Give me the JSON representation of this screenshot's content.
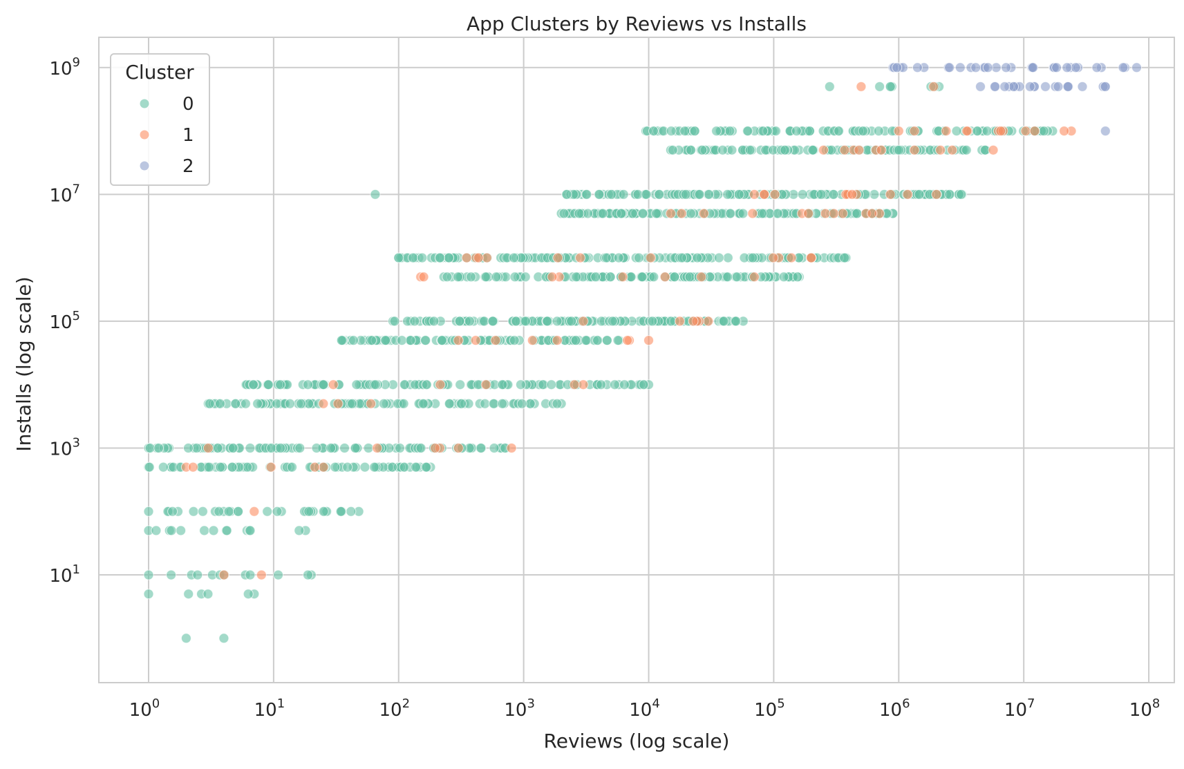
{
  "chart_data": {
    "type": "scatter",
    "title": "App Clusters by Reviews vs Installs",
    "xlabel": "Reviews (log scale)",
    "ylabel": "Installs (log scale)",
    "xscale": "log",
    "yscale": "log",
    "xlim": [
      0.4,
      160000000
    ],
    "ylim": [
      0.2,
      3000000000
    ],
    "grid": true,
    "legend": {
      "title": "Cluster",
      "placement": "top-left"
    },
    "x_tick_labels": [
      {
        "base": "10",
        "exp": "0",
        "value": 1
      },
      {
        "base": "10",
        "exp": "1",
        "value": 10
      },
      {
        "base": "10",
        "exp": "2",
        "value": 100
      },
      {
        "base": "10",
        "exp": "3",
        "value": 1000
      },
      {
        "base": "10",
        "exp": "4",
        "value": 10000
      },
      {
        "base": "10",
        "exp": "5",
        "value": 100000
      },
      {
        "base": "10",
        "exp": "6",
        "value": 1000000
      },
      {
        "base": "10",
        "exp": "7",
        "value": 10000000
      },
      {
        "base": "10",
        "exp": "8",
        "value": 100000000
      }
    ],
    "y_tick_labels": [
      {
        "base": "10",
        "exp": "1",
        "value": 10
      },
      {
        "base": "10",
        "exp": "3",
        "value": 1000
      },
      {
        "base": "10",
        "exp": "5",
        "value": 100000
      },
      {
        "base": "10",
        "exp": "7",
        "value": 10000000
      },
      {
        "base": "10",
        "exp": "9",
        "value": 1000000000
      }
    ],
    "series": [
      {
        "name": "0",
        "color": "#66c2a5",
        "bands": [
          {
            "y": 1,
            "x_min": 2,
            "x_max": 4,
            "n": 2
          },
          {
            "y": 5,
            "x_min": 1,
            "x_max": 7,
            "n": 6
          },
          {
            "y": 10,
            "x_min": 1,
            "x_max": 20,
            "n": 12
          },
          {
            "y": 50,
            "x_min": 1,
            "x_max": 18,
            "n": 14
          },
          {
            "y": 100,
            "x_min": 1,
            "x_max": 48,
            "n": 30
          },
          {
            "y": 500,
            "x_min": 1,
            "x_max": 180,
            "n": 70
          },
          {
            "y": 1000,
            "x_min": 1,
            "x_max": 720,
            "n": 90
          },
          {
            "y": 5000,
            "x_min": 3,
            "x_max": 2000,
            "n": 90
          },
          {
            "y": 10000,
            "x_min": 6,
            "x_max": 10000,
            "n": 110
          },
          {
            "y": 50000,
            "x_min": 35,
            "x_max": 5800,
            "n": 90
          },
          {
            "y": 100000,
            "x_min": 90,
            "x_max": 57000,
            "n": 120
          },
          {
            "y": 500000,
            "x_min": 230,
            "x_max": 160000,
            "n": 130
          },
          {
            "y": 1000000,
            "x_min": 100,
            "x_max": 380000,
            "n": 140
          },
          {
            "y": 5000000,
            "x_min": 2000,
            "x_max": 900000,
            "n": 130
          },
          {
            "y": 10000000,
            "x_min": 2200,
            "x_max": 3200000,
            "n": 140
          },
          {
            "y": 50000000,
            "x_min": 15000,
            "x_max": 5000000,
            "n": 100
          },
          {
            "y": 100000000,
            "x_min": 9500,
            "x_max": 17000000,
            "n": 100
          },
          {
            "y": 500000000,
            "x_min": 280000,
            "x_max": 2100000,
            "n": 8
          }
        ],
        "points": [
          {
            "x": 65,
            "y": 10000000
          },
          {
            "x": 100,
            "y": 1000000
          },
          {
            "x": 35,
            "y": 50000
          }
        ]
      },
      {
        "name": "1",
        "color": "#fc8d62",
        "bands": [
          {
            "y": 10,
            "x_min": 4,
            "x_max": 8,
            "n": 2
          },
          {
            "y": 100,
            "x_min": 7,
            "x_max": 7,
            "n": 1
          },
          {
            "y": 500,
            "x_min": 2,
            "x_max": 25,
            "n": 5
          },
          {
            "y": 1000,
            "x_min": 3,
            "x_max": 800,
            "n": 6
          },
          {
            "y": 5000,
            "x_min": 25,
            "x_max": 60,
            "n": 3
          },
          {
            "y": 10000,
            "x_min": 30,
            "x_max": 3000,
            "n": 5
          },
          {
            "y": 50000,
            "x_min": 300,
            "x_max": 10000,
            "n": 8
          },
          {
            "y": 100000,
            "x_min": 3000,
            "x_max": 30000,
            "n": 6
          },
          {
            "y": 500000,
            "x_min": 150,
            "x_max": 70000,
            "n": 8
          },
          {
            "y": 1000000,
            "x_min": 350,
            "x_max": 200000,
            "n": 12
          },
          {
            "y": 5000000,
            "x_min": 15000,
            "x_max": 700000,
            "n": 12
          },
          {
            "y": 10000000,
            "x_min": 70000,
            "x_max": 2000000,
            "n": 12
          },
          {
            "y": 50000000,
            "x_min": 250000,
            "x_max": 5700000,
            "n": 10
          },
          {
            "y": 100000000,
            "x_min": 1000000,
            "x_max": 24000000,
            "n": 12
          },
          {
            "y": 500000000,
            "x_min": 500000,
            "x_max": 1900000,
            "n": 2
          }
        ],
        "points": []
      },
      {
        "name": "2",
        "color": "#8da0cb",
        "bands": [
          {
            "y": 1000000000,
            "x_min": 900000,
            "x_max": 80000000,
            "n": 35
          },
          {
            "y": 500000000,
            "x_min": 4500000,
            "x_max": 45000000,
            "n": 22
          }
        ],
        "points": [
          {
            "x": 45000000,
            "y": 100000000
          }
        ]
      }
    ]
  }
}
